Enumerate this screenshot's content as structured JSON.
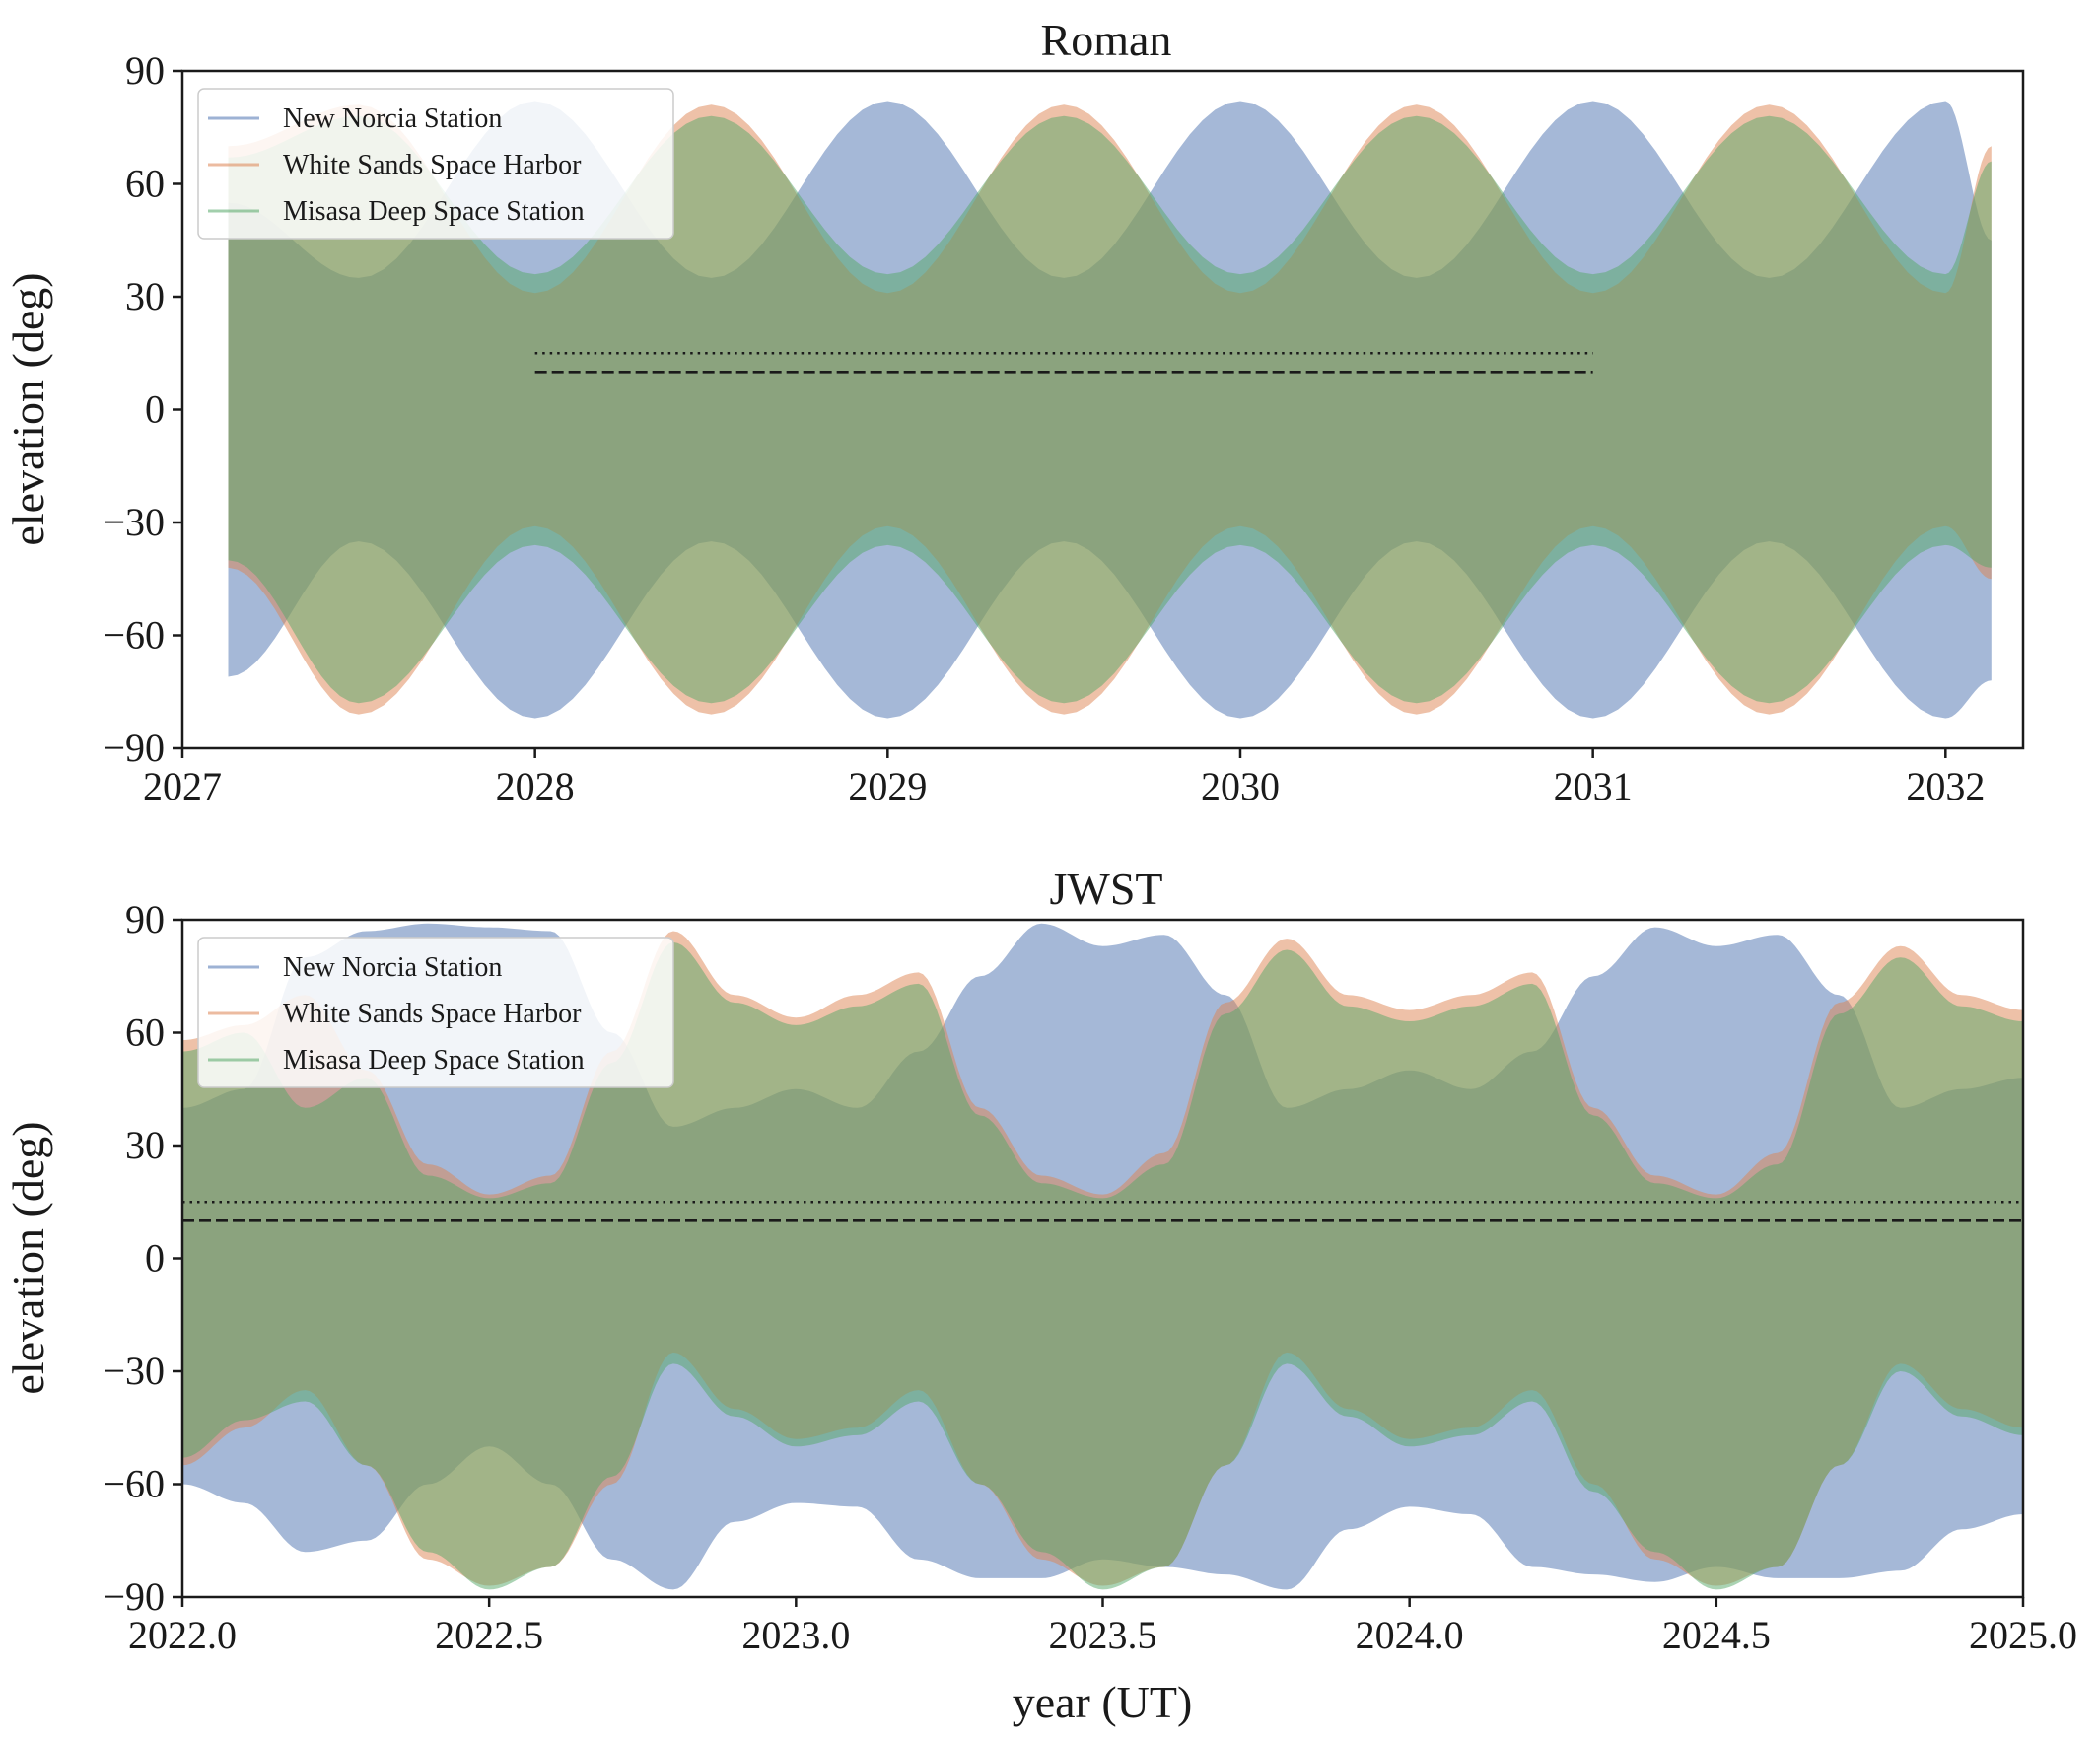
{
  "chart_data": [
    {
      "type": "area",
      "title": "Roman",
      "xlabel": "",
      "ylabel": "elevation (deg)",
      "xlim": [
        2027.0,
        2032.22
      ],
      "ylim": [
        -90,
        90
      ],
      "xticks": [
        2027,
        2028,
        2029,
        2030,
        2031,
        2032
      ],
      "xtick_labels": [
        "2027",
        "2028",
        "2029",
        "2030",
        "2031",
        "2032"
      ],
      "yticks": [
        -90,
        -60,
        -30,
        0,
        30,
        60,
        90
      ],
      "ytick_labels": [
        "−90",
        "−60",
        "−30",
        "0",
        "30",
        "60",
        "90"
      ],
      "grid": false,
      "legend": {
        "position": "top-left"
      },
      "series": [
        {
          "name": "New Norcia Station",
          "color": "#4c72b0",
          "x": [
            2027.13,
            2027.5,
            2028.0,
            2028.5,
            2029.0,
            2029.5,
            2030.0,
            2030.5,
            2031.0,
            2031.5,
            2032.0,
            2032.13
          ],
          "upper": [
            55,
            35,
            82,
            35,
            82,
            35,
            82,
            35,
            82,
            35,
            82,
            45
          ],
          "lower": [
            -71,
            -35,
            -82,
            -35,
            -82,
            -35,
            -82,
            -35,
            -82,
            -35,
            -82,
            -72
          ]
        },
        {
          "name": "White Sands Space Harbor",
          "color": "#dd8452",
          "x": [
            2027.13,
            2027.5,
            2028.0,
            2028.5,
            2029.0,
            2029.5,
            2030.0,
            2030.5,
            2031.0,
            2031.5,
            2032.0,
            2032.13
          ],
          "upper": [
            70,
            81,
            31,
            81,
            31,
            81,
            31,
            81,
            31,
            81,
            31,
            70
          ],
          "lower": [
            -42,
            -81,
            -31,
            -81,
            -31,
            -81,
            -31,
            -81,
            -31,
            -81,
            -31,
            -45
          ]
        },
        {
          "name": "Misasa Deep Space Station",
          "color": "#55a868",
          "x": [
            2027.13,
            2027.5,
            2028.0,
            2028.5,
            2029.0,
            2029.5,
            2030.0,
            2030.5,
            2031.0,
            2031.5,
            2032.0,
            2032.13
          ],
          "upper": [
            67,
            78,
            36,
            78,
            36,
            78,
            36,
            78,
            36,
            78,
            36,
            66
          ],
          "lower": [
            -40,
            -78,
            -36,
            -78,
            -36,
            -78,
            -36,
            -78,
            -36,
            -78,
            -36,
            -42
          ]
        }
      ],
      "hlines": [
        {
          "y": 15,
          "style": "dotted",
          "xmin": 2028.0,
          "xmax": 2031.0
        },
        {
          "y": 10,
          "style": "dashed",
          "xmin": 2028.0,
          "xmax": 2031.0
        }
      ]
    },
    {
      "type": "area",
      "title": "JWST",
      "xlabel": "year (UT)",
      "ylabel": "elevation (deg)",
      "xlim": [
        2022.0,
        2025.0
      ],
      "ylim": [
        -90,
        90
      ],
      "xticks": [
        2022.0,
        2022.5,
        2023.0,
        2023.5,
        2024.0,
        2024.5,
        2025.0
      ],
      "xtick_labels": [
        "2022.0",
        "2022.5",
        "2023.0",
        "2023.5",
        "2024.0",
        "2024.5",
        "2025.0"
      ],
      "yticks": [
        -90,
        -60,
        -30,
        0,
        30,
        60,
        90
      ],
      "ytick_labels": [
        "−90",
        "−60",
        "−30",
        "0",
        "30",
        "60",
        "90"
      ],
      "grid": false,
      "legend": {
        "position": "top-left"
      },
      "series": [
        {
          "name": "New Norcia Station",
          "color": "#4c72b0",
          "x": [
            2022.0,
            2022.1,
            2022.2,
            2022.3,
            2022.4,
            2022.5,
            2022.6,
            2022.7,
            2022.8,
            2022.9,
            2023.0,
            2023.1,
            2023.2,
            2023.3,
            2023.4,
            2023.5,
            2023.6,
            2023.7,
            2023.8,
            2023.9,
            2024.0,
            2024.1,
            2024.2,
            2024.3,
            2024.4,
            2024.5,
            2024.6,
            2024.7,
            2024.8,
            2024.9,
            2025.0
          ],
          "upper": [
            40,
            45,
            80,
            87,
            89,
            88,
            87,
            60,
            35,
            40,
            45,
            40,
            55,
            75,
            89,
            83,
            86,
            70,
            40,
            45,
            50,
            45,
            55,
            75,
            88,
            83,
            86,
            70,
            40,
            45,
            48
          ],
          "lower": [
            -60,
            -65,
            -78,
            -75,
            -60,
            -50,
            -60,
            -80,
            -88,
            -70,
            -65,
            -66,
            -80,
            -85,
            -85,
            -80,
            -82,
            -84,
            -88,
            -72,
            -66,
            -68,
            -82,
            -84,
            -86,
            -82,
            -85,
            -85,
            -83,
            -72,
            -68
          ]
        },
        {
          "name": "White Sands Space Harbor",
          "color": "#dd8452",
          "x": [
            2022.0,
            2022.1,
            2022.2,
            2022.3,
            2022.4,
            2022.5,
            2022.6,
            2022.7,
            2022.8,
            2022.9,
            2023.0,
            2023.1,
            2023.2,
            2023.3,
            2023.4,
            2023.5,
            2023.6,
            2023.7,
            2023.8,
            2023.9,
            2024.0,
            2024.1,
            2024.2,
            2024.3,
            2024.4,
            2024.5,
            2024.6,
            2024.7,
            2024.8,
            2024.9,
            2025.0
          ],
          "upper": [
            58,
            62,
            70,
            50,
            25,
            17,
            22,
            55,
            87,
            70,
            64,
            70,
            76,
            40,
            22,
            17,
            28,
            68,
            85,
            70,
            66,
            70,
            76,
            40,
            22,
            17,
            28,
            68,
            83,
            70,
            66
          ],
          "lower": [
            -55,
            -45,
            -35,
            -55,
            -80,
            -87,
            -82,
            -60,
            -25,
            -40,
            -48,
            -45,
            -35,
            -60,
            -80,
            -87,
            -82,
            -55,
            -25,
            -40,
            -48,
            -45,
            -35,
            -60,
            -80,
            -87,
            -82,
            -55,
            -28,
            -40,
            -45
          ]
        },
        {
          "name": "Misasa Deep Space Station",
          "color": "#55a868",
          "x": [
            2022.0,
            2022.1,
            2022.2,
            2022.3,
            2022.4,
            2022.5,
            2022.6,
            2022.7,
            2022.8,
            2022.9,
            2023.0,
            2023.1,
            2023.2,
            2023.3,
            2023.4,
            2023.5,
            2023.6,
            2023.7,
            2023.8,
            2023.9,
            2024.0,
            2024.1,
            2024.2,
            2024.3,
            2024.4,
            2024.5,
            2024.6,
            2024.7,
            2024.8,
            2024.9,
            2025.0
          ],
          "upper": [
            55,
            60,
            40,
            48,
            22,
            16,
            20,
            52,
            84,
            68,
            62,
            67,
            73,
            38,
            20,
            16,
            25,
            65,
            82,
            67,
            63,
            67,
            73,
            38,
            20,
            16,
            25,
            65,
            80,
            67,
            63
          ],
          "lower": [
            -53,
            -43,
            -38,
            -55,
            -78,
            -88,
            -82,
            -58,
            -28,
            -42,
            -50,
            -47,
            -38,
            -60,
            -78,
            -88,
            -82,
            -55,
            -28,
            -42,
            -50,
            -47,
            -38,
            -62,
            -78,
            -88,
            -82,
            -55,
            -30,
            -42,
            -47
          ]
        }
      ],
      "hlines": [
        {
          "y": 15,
          "style": "dotted",
          "xmin": 2022.0,
          "xmax": 2025.0
        },
        {
          "y": 10,
          "style": "dashed",
          "xmin": 2022.0,
          "xmax": 2025.0
        }
      ]
    }
  ]
}
